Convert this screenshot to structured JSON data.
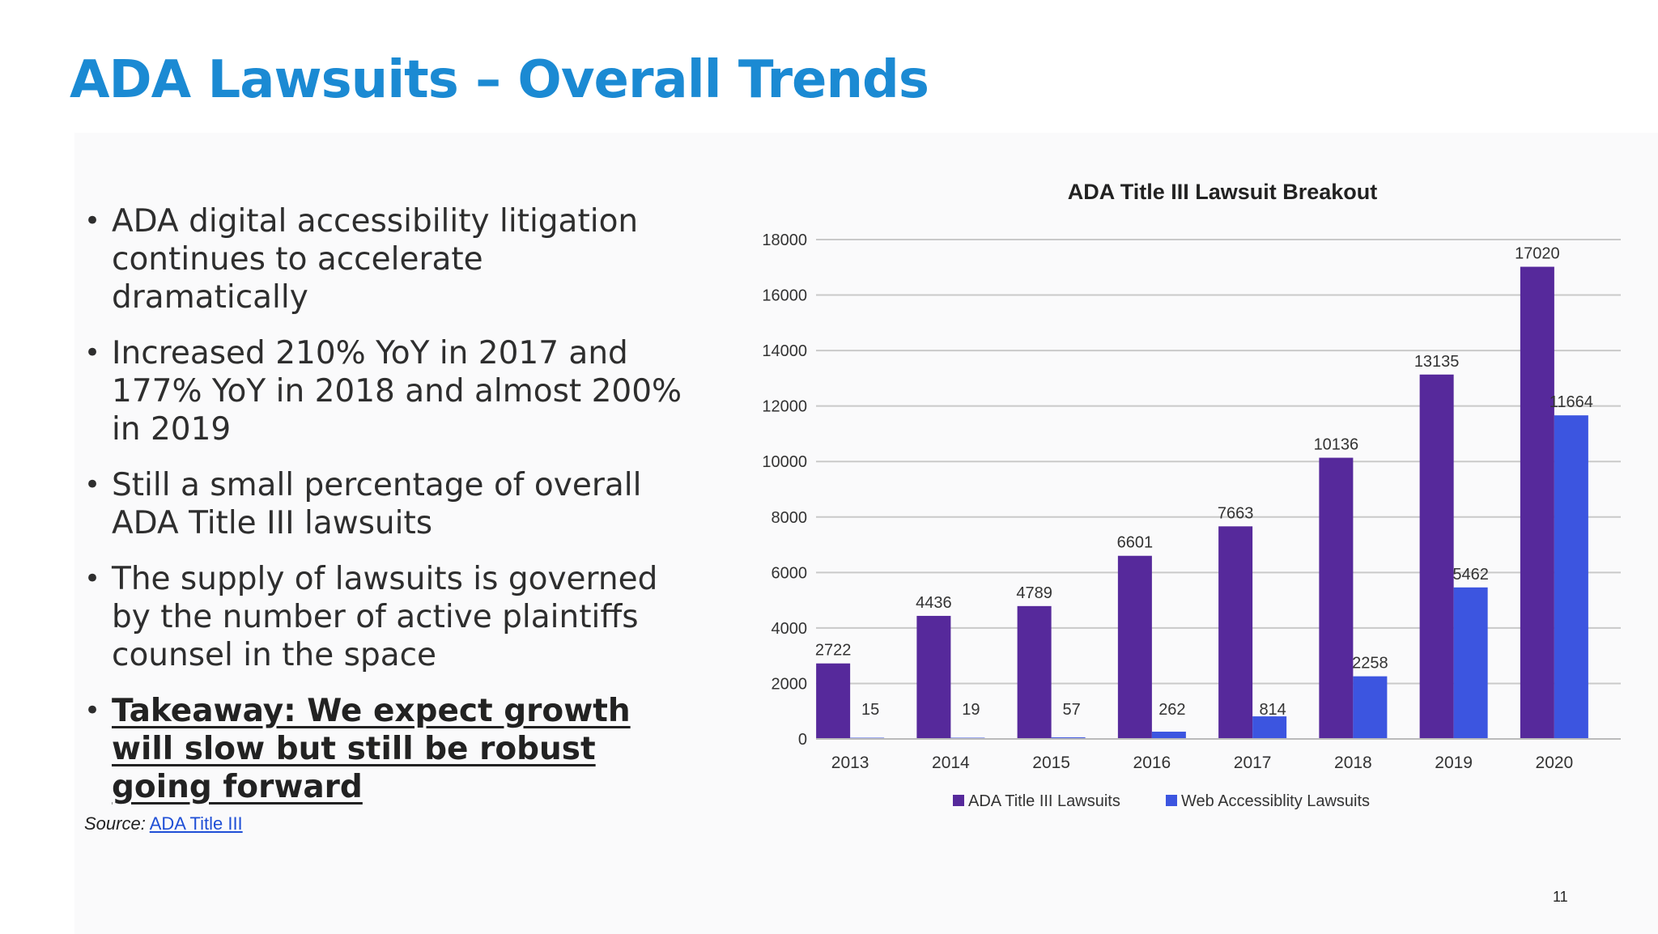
{
  "slide": {
    "title": "ADA Lawsuits – Overall Trends",
    "bullets": [
      "ADA digital accessibility litigation continues to accelerate dramatically",
      "Increased 210% YoY in 2017 and 177% YoY in 2018 and almost 200% in 2019",
      "Still a small percentage of overall ADA Title III lawsuits",
      "The supply of lawsuits is governed by the number of active plaintiffs counsel in the space"
    ],
    "takeaway": "Takeaway: We expect growth will slow but still be robust going forward",
    "source_label": "Source:",
    "source_link_text": "ADA Title III",
    "page_number": "11",
    "bullet_char": "•"
  },
  "chart_data": {
    "type": "bar",
    "title": "ADA Title III Lawsuit Breakout",
    "categories": [
      "2013",
      "2014",
      "2015",
      "2016",
      "2017",
      "2018",
      "2019",
      "2020"
    ],
    "series": [
      {
        "name": "ADA Title III Lawsuits",
        "color": "#56299b",
        "values": [
          2722,
          4436,
          4789,
          6601,
          7663,
          10136,
          13135,
          17020
        ]
      },
      {
        "name": "Web Accessiblity Lawsuits",
        "color": "#3c55e0",
        "values": [
          15,
          19,
          57,
          262,
          814,
          2258,
          5462,
          11664
        ]
      }
    ],
    "ylim": [
      0,
      18000
    ],
    "yticks": [
      0,
      2000,
      4000,
      6000,
      8000,
      10000,
      12000,
      14000,
      16000,
      18000
    ],
    "grid": true,
    "legend": "bottom",
    "xlabel": "",
    "ylabel": ""
  }
}
